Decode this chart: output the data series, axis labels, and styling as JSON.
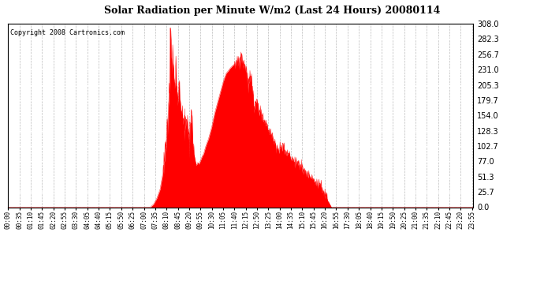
{
  "title": "Solar Radiation per Minute W/m2 (Last 24 Hours) 20080114",
  "copyright_text": "Copyright 2008 Cartronics.com",
  "bar_color": "#ff0000",
  "background_color": "#ffffff",
  "plot_bg_color": "#ffffff",
  "ylim": [
    0.0,
    308.0
  ],
  "ytick_values": [
    0.0,
    25.7,
    51.3,
    77.0,
    102.7,
    128.3,
    154.0,
    179.7,
    205.3,
    231.0,
    256.7,
    282.3,
    308.0
  ],
  "grid_color": "#bbbbbb",
  "x_tick_labels": [
    "00:00",
    "00:35",
    "01:10",
    "01:45",
    "02:20",
    "02:55",
    "03:30",
    "04:05",
    "04:40",
    "05:15",
    "05:50",
    "06:25",
    "07:00",
    "07:35",
    "08:10",
    "08:45",
    "09:20",
    "09:55",
    "10:30",
    "11:05",
    "11:40",
    "12:15",
    "12:50",
    "13:25",
    "14:00",
    "14:35",
    "15:10",
    "15:45",
    "16:20",
    "16:55",
    "17:30",
    "18:05",
    "18:40",
    "19:15",
    "19:50",
    "20:25",
    "21:00",
    "21:35",
    "22:10",
    "22:45",
    "23:20",
    "23:55"
  ],
  "num_minutes": 1440
}
